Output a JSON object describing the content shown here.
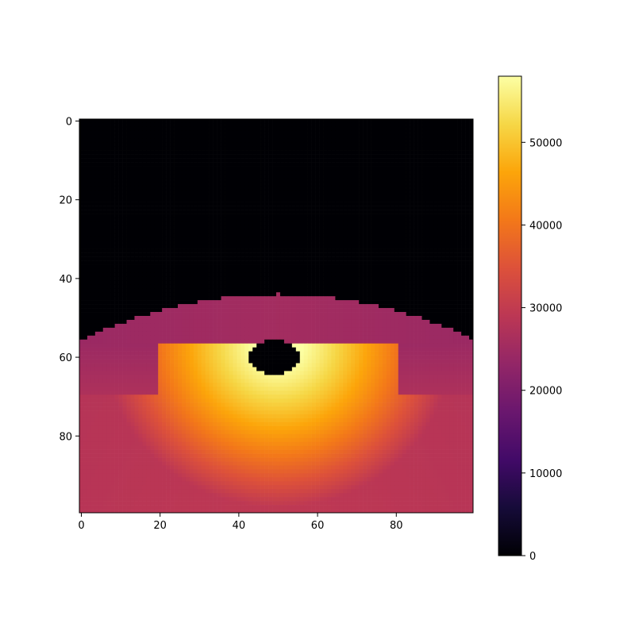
{
  "chart_data": {
    "type": "heatmap",
    "title": "",
    "xlabel": "",
    "ylabel": "",
    "grid": false,
    "colormap": "inferno",
    "image_shape": [
      100,
      100
    ],
    "x_ticks": [
      0,
      20,
      40,
      60,
      80
    ],
    "x_tick_labels": [
      "0",
      "20",
      "40",
      "60",
      "80"
    ],
    "y_ticks": [
      0,
      20,
      40,
      60,
      80
    ],
    "y_tick_labels": [
      "0",
      "20",
      "40",
      "60",
      "80"
    ],
    "xlim": [
      -0.5,
      99.5
    ],
    "ylim": [
      99.5,
      -0.5
    ],
    "colorbar": {
      "vmin": 0,
      "vmax": 58000,
      "ticks": [
        0,
        10000,
        20000,
        30000,
        40000,
        50000
      ],
      "tick_labels": [
        "0",
        "10000",
        "20000",
        "30000",
        "40000",
        "50000"
      ]
    },
    "field_model": {
      "description": "Zero above a domed boundary; ~26000 band; hot spot near (50,60) peaking ~58000 with a zero-valued hole at its center.",
      "boundary_top_row_center": 44,
      "boundary_row_at_edges": 55,
      "center_col": 50,
      "center_row": 57,
      "hole": {
        "col": 49,
        "row": 60,
        "radius_col": 6.5,
        "radius_row": 4.5,
        "value": 0
      },
      "band_value": 25500,
      "peak_value": 58000,
      "bottom_value": 29000,
      "bright_start_row": 57
    }
  }
}
